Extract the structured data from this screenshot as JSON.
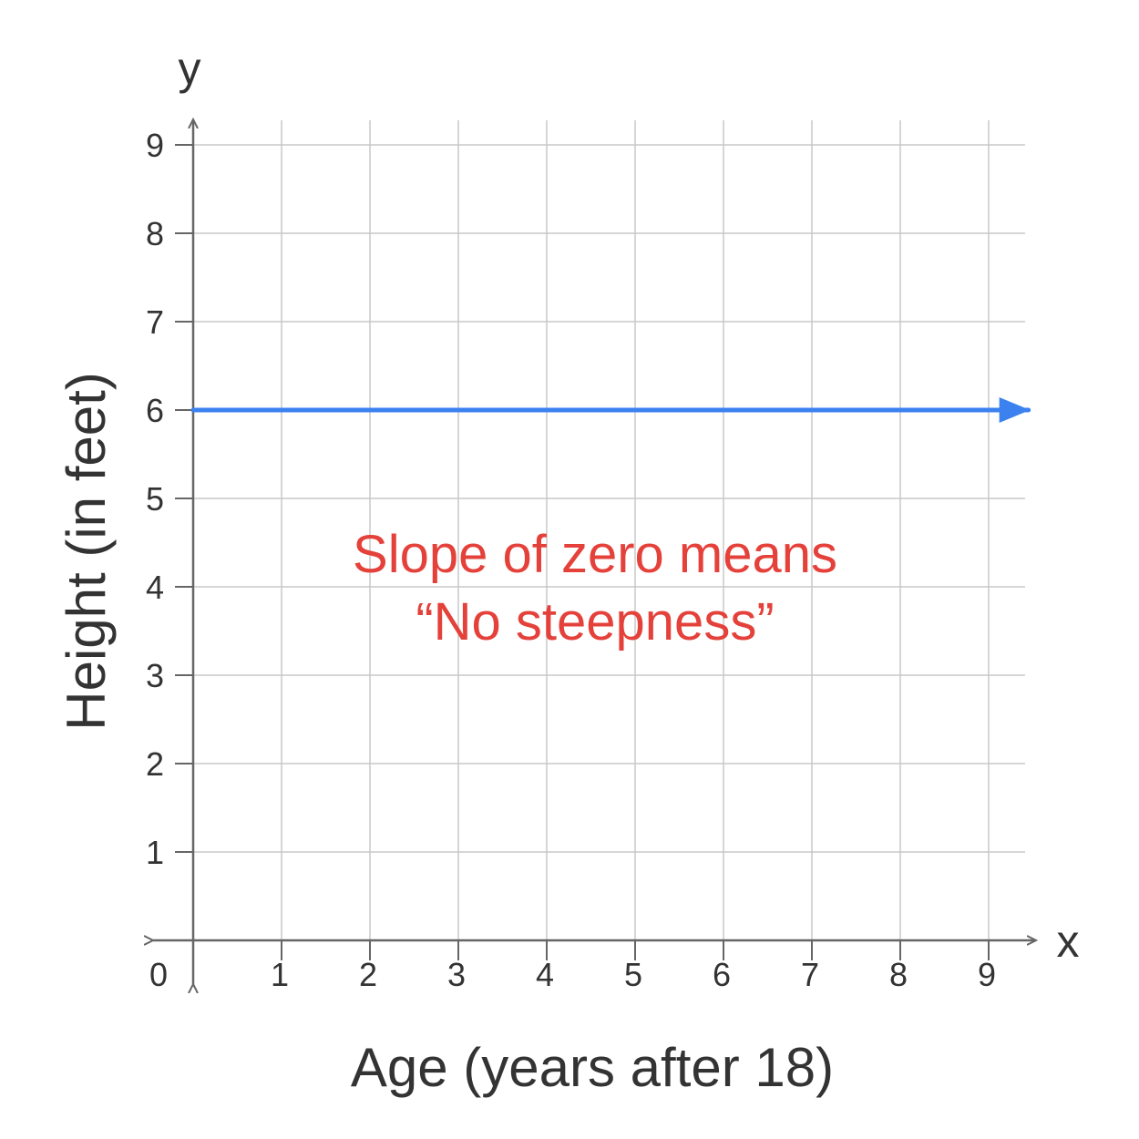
{
  "chart_data": {
    "type": "line",
    "title": "",
    "xlabel": "Age (years after 18)",
    "ylabel": "Height (in feet)",
    "x_axis_letter": "x",
    "y_axis_letter": "y",
    "origin_label": "0",
    "xlim": [
      0,
      9
    ],
    "ylim": [
      0,
      9
    ],
    "x_ticks": [
      "1",
      "2",
      "3",
      "4",
      "5",
      "6",
      "7",
      "8",
      "9"
    ],
    "y_ticks": [
      "1",
      "2",
      "3",
      "4",
      "5",
      "6",
      "7",
      "8",
      "9"
    ],
    "grid": true,
    "series": [
      {
        "x": [
          0,
          9.45
        ],
        "y": [
          6,
          6
        ],
        "color": "#3b82f0",
        "arrow_end": true
      }
    ],
    "annotation": {
      "lines": [
        "Slope of zero means",
        "“No steepness”"
      ],
      "color": "#e5413b"
    },
    "colors": {
      "grid": "#c8c8c8",
      "axis": "#666666",
      "text": "#333333"
    }
  }
}
